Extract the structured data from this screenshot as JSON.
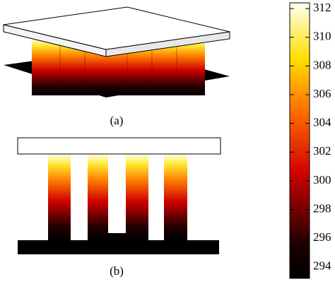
{
  "panels": [
    {
      "label": "(a)"
    },
    {
      "label": "(b)"
    }
  ],
  "colorbar": {
    "range": [
      293.2,
      312.4
    ],
    "ticks": [
      312,
      310,
      308,
      306,
      304,
      302,
      300,
      298,
      296,
      294
    ]
  }
}
